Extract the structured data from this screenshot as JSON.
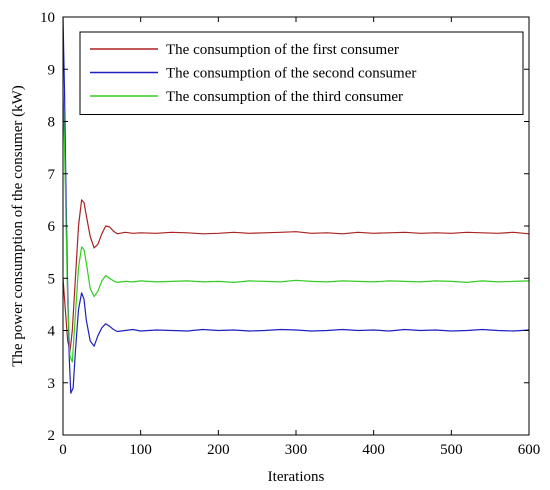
{
  "chart_data": {
    "type": "line",
    "title": "",
    "xlabel": "Iterations",
    "ylabel": "The power consumption of the consumer (kW)",
    "xlim": [
      0,
      600
    ],
    "ylim": [
      2,
      10
    ],
    "xticks": [
      0,
      100,
      200,
      300,
      400,
      500,
      600
    ],
    "yticks": [
      2,
      3,
      4,
      5,
      6,
      7,
      8,
      9,
      10
    ],
    "xtick_labels": [
      "0",
      "100",
      "200",
      "300",
      "400",
      "500",
      "600"
    ],
    "ytick_labels": [
      "2",
      "3",
      "4",
      "5",
      "6",
      "7",
      "8",
      "9",
      "10"
    ],
    "grid": false,
    "legend_position": "top-right",
    "series": [
      {
        "name": "The consumption of the first consumer",
        "color": "#aa2222",
        "x": [
          0,
          3,
          6,
          9,
          12,
          16,
          20,
          24,
          27,
          30,
          35,
          40,
          45,
          50,
          55,
          60,
          65,
          70,
          80,
          90,
          100,
          120,
          140,
          160,
          180,
          200,
          220,
          240,
          260,
          280,
          300,
          320,
          340,
          360,
          380,
          400,
          420,
          440,
          460,
          480,
          500,
          520,
          540,
          560,
          580,
          600
        ],
        "y": [
          5.0,
          4.4,
          3.8,
          3.6,
          4.0,
          5.0,
          6.0,
          6.5,
          6.45,
          6.2,
          5.8,
          5.58,
          5.65,
          5.85,
          6.0,
          5.98,
          5.9,
          5.85,
          5.88,
          5.86,
          5.87,
          5.86,
          5.88,
          5.87,
          5.85,
          5.86,
          5.88,
          5.86,
          5.87,
          5.88,
          5.89,
          5.86,
          5.87,
          5.85,
          5.88,
          5.86,
          5.87,
          5.88,
          5.86,
          5.87,
          5.86,
          5.88,
          5.87,
          5.86,
          5.88,
          5.85
        ]
      },
      {
        "name": "The consumption of the second consumer",
        "color": "#1f1fbf",
        "x": [
          0,
          2,
          4,
          6,
          8,
          10,
          13,
          16,
          20,
          24,
          27,
          30,
          35,
          40,
          45,
          50,
          55,
          60,
          65,
          70,
          80,
          90,
          100,
          120,
          140,
          160,
          180,
          200,
          220,
          240,
          260,
          280,
          300,
          320,
          340,
          360,
          380,
          400,
          420,
          440,
          460,
          480,
          500,
          520,
          540,
          560,
          580,
          600
        ],
        "y": [
          10.0,
          8.5,
          6.5,
          4.8,
          3.5,
          2.8,
          2.9,
          3.6,
          4.4,
          4.72,
          4.6,
          4.2,
          3.8,
          3.7,
          3.9,
          4.05,
          4.13,
          4.08,
          4.02,
          3.98,
          4.0,
          4.02,
          3.99,
          4.01,
          4.0,
          3.99,
          4.02,
          4.0,
          4.01,
          3.99,
          4.0,
          4.02,
          4.01,
          3.99,
          4.0,
          4.02,
          4.0,
          4.01,
          3.99,
          4.02,
          4.0,
          4.01,
          3.99,
          4.0,
          4.02,
          4.0,
          3.99,
          4.01
        ]
      },
      {
        "name": "The consumption of the third consumer",
        "color": "#33cc22",
        "x": [
          0,
          2,
          4,
          6,
          9,
          12,
          16,
          20,
          24,
          27,
          30,
          35,
          40,
          45,
          50,
          55,
          60,
          65,
          70,
          80,
          90,
          100,
          120,
          140,
          160,
          180,
          200,
          220,
          240,
          260,
          280,
          300,
          320,
          340,
          360,
          380,
          400,
          420,
          440,
          460,
          480,
          500,
          520,
          540,
          560,
          580,
          600
        ],
        "y": [
          8.6,
          7.5,
          6.0,
          4.5,
          3.5,
          3.4,
          4.3,
          5.2,
          5.6,
          5.55,
          5.3,
          4.8,
          4.65,
          4.75,
          4.95,
          5.05,
          5.0,
          4.95,
          4.92,
          4.94,
          4.93,
          4.95,
          4.93,
          4.94,
          4.95,
          4.93,
          4.94,
          4.92,
          4.95,
          4.94,
          4.93,
          4.96,
          4.94,
          4.93,
          4.95,
          4.94,
          4.93,
          4.95,
          4.94,
          4.93,
          4.95,
          4.94,
          4.92,
          4.95,
          4.93,
          4.94,
          4.95
        ]
      }
    ]
  }
}
